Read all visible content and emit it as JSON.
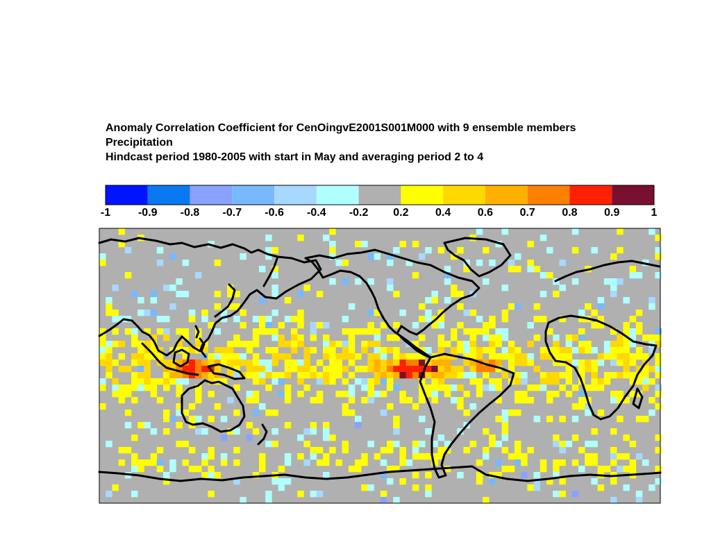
{
  "titles": {
    "line1": "Anomaly Correlation Coefficient for CenOingvE2001S001M000 with  9 ensemble members",
    "line2": "Precipitation",
    "line3": "Hindcast period 1980-2005 with start in May and averaging period 2 to 4"
  },
  "colorbar": {
    "labels": [
      "-1",
      "-0.9",
      "-0.8",
      "-0.7",
      "-0.6",
      "-0.4",
      "-0.2",
      "0.2",
      "0.4",
      "0.6",
      "0.7",
      "0.8",
      "0.9",
      "1"
    ],
    "colors": [
      "#0014ff",
      "#0a78f0",
      "#8aa2ff",
      "#78b8ff",
      "#a8d8ff",
      "#b0ffff",
      "#b0b0b0",
      "#ffff00",
      "#ffd800",
      "#ffb000",
      "#ff8000",
      "#ff2000",
      "#7a1030"
    ]
  },
  "map": {
    "projection": "equirectangular",
    "center_longitude": 180,
    "background_color": "#b0b0b0",
    "coastline_color": "#000000",
    "highlight_regions": [
      {
        "name": "equatorial-east-pacific",
        "level": "0.8-0.9"
      },
      {
        "name": "maritime-continent",
        "level": "0.8-0.9"
      },
      {
        "name": "northern-south-america",
        "level": "0.7-0.8"
      }
    ]
  }
}
